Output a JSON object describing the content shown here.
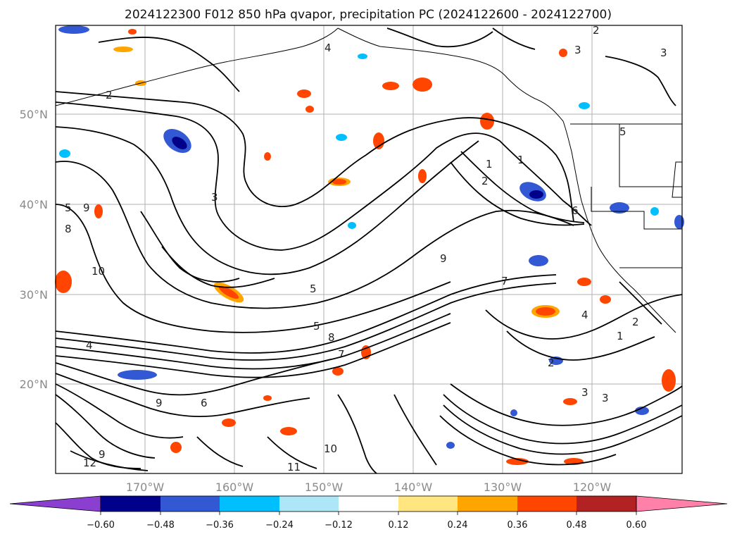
{
  "title": "2024122300 F012 850 hPa qvapor, precipitation PC (2024122600 - 2024122700)",
  "map": {
    "lat_labels": [
      "50°N",
      "40°N",
      "30°N",
      "20°N"
    ],
    "lon_labels": [
      "170°W",
      "160°W",
      "150°W",
      "140°W",
      "130°W",
      "120°W"
    ],
    "contour_labels": [
      "4",
      "2",
      "2",
      "3",
      "3",
      "5",
      "1",
      "1",
      "2",
      "5",
      "9",
      "8",
      "10",
      "9",
      "7",
      "5",
      "4",
      "2",
      "3",
      "6",
      "9",
      "10",
      "11",
      "12",
      "9",
      "8",
      "7",
      "6",
      "5",
      "4",
      "3",
      "2",
      "1",
      "3"
    ]
  },
  "colorbar": {
    "colors": [
      "#8a3fd1",
      "#00008b",
      "#3358d4",
      "#00bfff",
      "#ade6f7",
      "#ffffff",
      "#ffe680",
      "#ffa500",
      "#ff4500",
      "#b22222",
      "#ff80a8"
    ],
    "tick_labels": [
      "−0.60",
      "−0.48",
      "−0.36",
      "−0.24",
      "−0.12",
      "0.12",
      "0.24",
      "0.36",
      "0.48",
      "0.60"
    ]
  },
  "colors": {
    "contour": "#000000",
    "grid": "#b0b0b0",
    "coast": "#000000"
  }
}
